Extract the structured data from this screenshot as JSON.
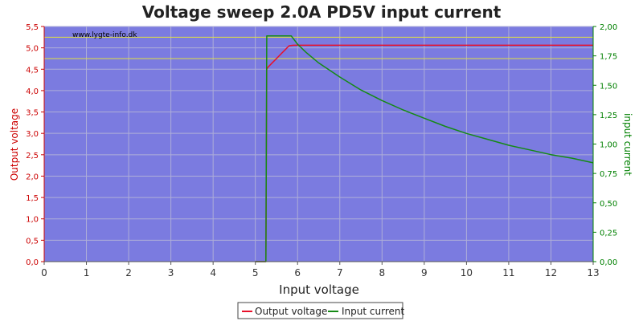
{
  "chart_data": {
    "type": "line",
    "title": "Voltage sweep 2.0A PD5V input current",
    "watermark": "www.lygte-info.dk",
    "xlabel": "Input voltage",
    "ylabel_left": "Output voltage",
    "ylabel_right": "input current",
    "xlim": [
      0,
      13
    ],
    "ylim_left": [
      0,
      5.5
    ],
    "ylim_right": [
      0,
      2.0
    ],
    "x_ticks": [
      "0",
      "1",
      "2",
      "3",
      "4",
      "5",
      "6",
      "7",
      "8",
      "9",
      "10",
      "11",
      "12",
      "13"
    ],
    "y_ticks_left": [
      "0,0",
      "0,5",
      "1,0",
      "1,5",
      "2,0",
      "2,5",
      "3,0",
      "3,5",
      "4,0",
      "4,5",
      "5,0",
      "5,5"
    ],
    "y_ticks_right": [
      "0,00",
      "0,25",
      "0,50",
      "0,75",
      "1,00",
      "1,25",
      "1,50",
      "1,75",
      "2,00"
    ],
    "reference_lines_left": [
      5.25,
      4.75
    ],
    "grid": true,
    "legend": "bottom-center",
    "colors": {
      "plot_bg": "#7b7be0",
      "grid": "#aeaed8",
      "output_voltage": "#e8102a",
      "input_current": "#158a15",
      "reference": "#e0e040",
      "left_axis_text": "#cc0000",
      "right_axis_text": "#008000"
    },
    "series": [
      {
        "name": "Output voltage",
        "axis": "left",
        "x": [
          5.0,
          5.25,
          5.27,
          5.3,
          5.4,
          5.5,
          5.6,
          5.7,
          5.8,
          5.9,
          6.0,
          7.0,
          8.0,
          9.0,
          10.0,
          11.0,
          12.0,
          13.0
        ],
        "y": [
          0.0,
          0.0,
          4.5,
          4.55,
          4.65,
          4.75,
          4.85,
          4.95,
          5.05,
          5.06,
          5.06,
          5.06,
          5.06,
          5.06,
          5.06,
          5.06,
          5.06,
          5.06
        ]
      },
      {
        "name": "Input current",
        "axis": "right",
        "x": [
          5.0,
          5.25,
          5.27,
          5.5,
          5.75,
          5.85,
          6.0,
          6.2,
          6.5,
          7.0,
          7.5,
          8.0,
          8.5,
          9.0,
          9.5,
          10.0,
          10.5,
          11.0,
          11.5,
          12.0,
          12.5,
          13.0
        ],
        "y": [
          0.0,
          0.0,
          1.92,
          1.92,
          1.92,
          1.92,
          1.85,
          1.78,
          1.69,
          1.57,
          1.46,
          1.37,
          1.29,
          1.22,
          1.15,
          1.09,
          1.04,
          0.99,
          0.95,
          0.91,
          0.88,
          0.84
        ]
      }
    ]
  }
}
